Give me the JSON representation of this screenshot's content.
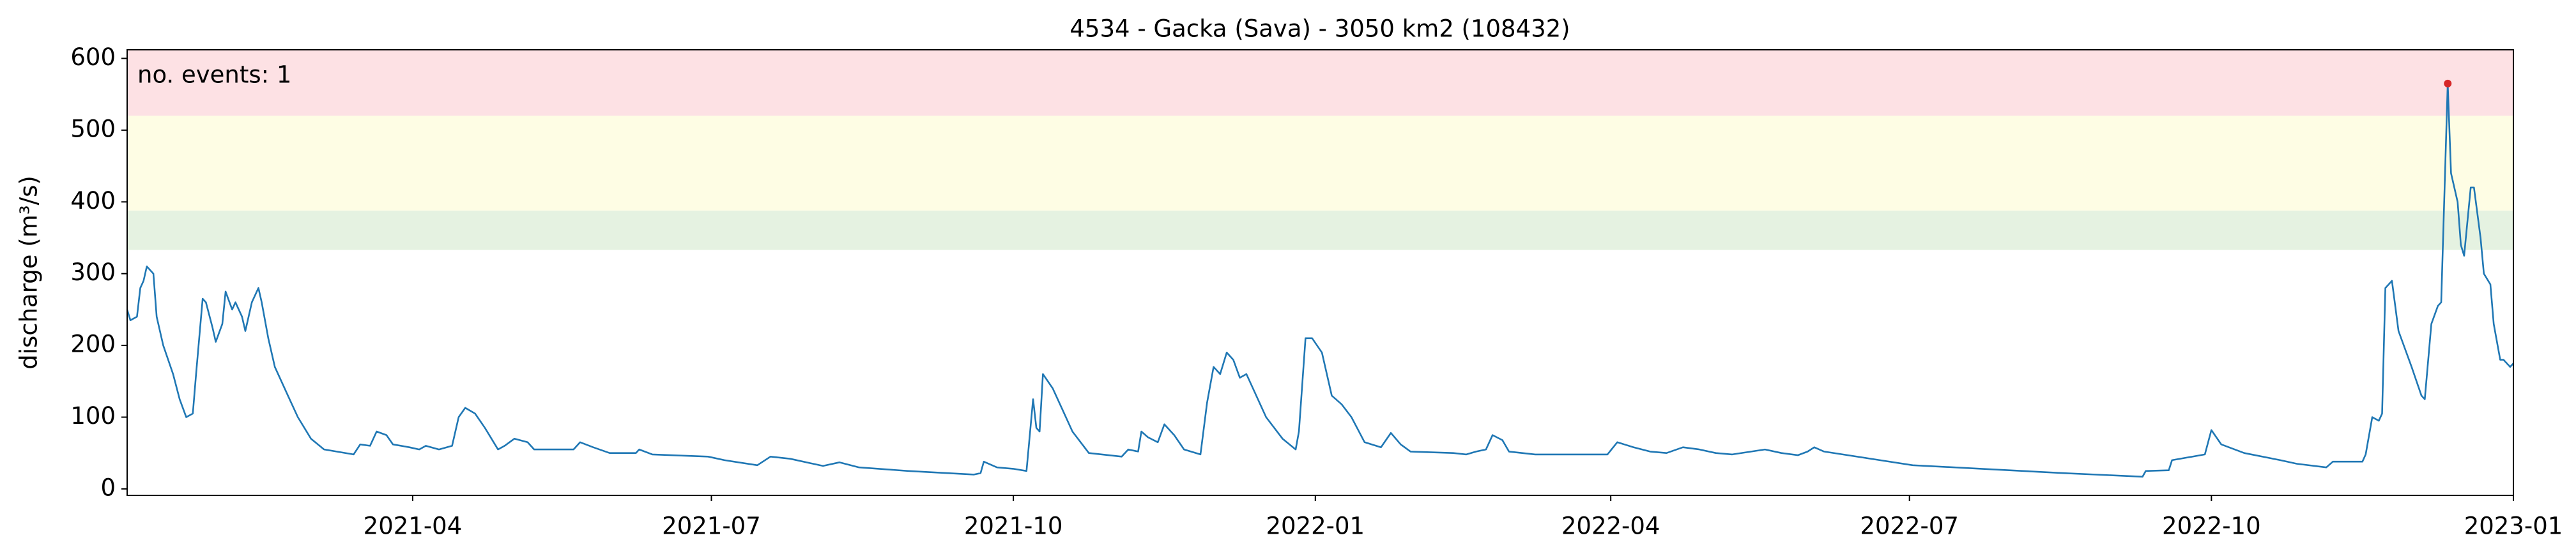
{
  "chart_data": {
    "type": "line",
    "title": "4534 - Gacka (Sava) - 3050 km2 (108432)",
    "y_label": "discharge (m³/s)",
    "annotation": "no. events: 1",
    "annotation_color": "#d62728",
    "xlim": [
      "2021-01-04",
      "2023-01-01"
    ],
    "xticks": [
      "2021-04",
      "2021-07",
      "2021-10",
      "2022-01",
      "2022-04",
      "2022-07",
      "2022-10",
      "2023-01"
    ],
    "ylim": [
      -9,
      612
    ],
    "yticks": [
      0,
      100,
      200,
      300,
      400,
      500,
      600
    ],
    "bands": [
      {
        "from": 333,
        "to": 388,
        "color": "#e5f2e1"
      },
      {
        "from": 388,
        "to": 520,
        "color": "#fefde4"
      },
      {
        "from": 520,
        "to": 612,
        "color": "#fde1e4"
      }
    ],
    "series": [
      {
        "color": "#1f77b4",
        "x": [
          "2021-01-04",
          "2021-01-05",
          "2021-01-07",
          "2021-01-08",
          "2021-01-09",
          "2021-01-10",
          "2021-01-12",
          "2021-01-13",
          "2021-01-15",
          "2021-01-18",
          "2021-01-20",
          "2021-01-22",
          "2021-01-24",
          "2021-01-25",
          "2021-01-27",
          "2021-01-28",
          "2021-01-30",
          "2021-01-31",
          "2021-02-02",
          "2021-02-03",
          "2021-02-05",
          "2021-02-06",
          "2021-02-08",
          "2021-02-09",
          "2021-02-11",
          "2021-02-13",
          "2021-02-14",
          "2021-02-16",
          "2021-02-18",
          "2021-02-22",
          "2021-02-25",
          "2021-03-01",
          "2021-03-05",
          "2021-03-14",
          "2021-03-16",
          "2021-03-19",
          "2021-03-21",
          "2021-03-24",
          "2021-03-26",
          "2021-03-31",
          "2021-04-03",
          "2021-04-05",
          "2021-04-09",
          "2021-04-13",
          "2021-04-15",
          "2021-04-17",
          "2021-04-20",
          "2021-04-23",
          "2021-04-27",
          "2021-04-29",
          "2021-05-02",
          "2021-05-06",
          "2021-05-08",
          "2021-05-16",
          "2021-05-20",
          "2021-05-22",
          "2021-05-26",
          "2021-05-31",
          "2021-06-08",
          "2021-06-09",
          "2021-06-13",
          "2021-06-30",
          "2021-07-05",
          "2021-07-15",
          "2021-07-19",
          "2021-07-25",
          "2021-08-04",
          "2021-08-09",
          "2021-08-15",
          "2021-08-30",
          "2021-09-19",
          "2021-09-21",
          "2021-09-22",
          "2021-09-26",
          "2021-10-01",
          "2021-10-05",
          "2021-10-07",
          "2021-10-08",
          "2021-10-09",
          "2021-10-10",
          "2021-10-13",
          "2021-10-16",
          "2021-10-19",
          "2021-10-24",
          "2021-11-03",
          "2021-11-05",
          "2021-11-08",
          "2021-11-09",
          "2021-11-11",
          "2021-11-14",
          "2021-11-16",
          "2021-11-19",
          "2021-11-22",
          "2021-11-27",
          "2021-11-29",
          "2021-12-01",
          "2021-12-03",
          "2021-12-05",
          "2021-12-07",
          "2021-12-09",
          "2021-12-11",
          "2021-12-13",
          "2021-12-17",
          "2021-12-22",
          "2021-12-26",
          "2021-12-27",
          "2021-12-29",
          "2021-12-31",
          "2022-01-03",
          "2022-01-06",
          "2022-01-09",
          "2022-01-12",
          "2022-01-16",
          "2022-01-21",
          "2022-01-24",
          "2022-01-27",
          "2022-01-30",
          "2022-02-12",
          "2022-02-16",
          "2022-02-19",
          "2022-02-22",
          "2022-02-24",
          "2022-02-27",
          "2022-03-01",
          "2022-03-09",
          "2022-03-31",
          "2022-04-03",
          "2022-04-08",
          "2022-04-13",
          "2022-04-18",
          "2022-04-23",
          "2022-04-28",
          "2022-05-03",
          "2022-05-08",
          "2022-05-18",
          "2022-05-23",
          "2022-05-28",
          "2022-05-31",
          "2022-06-02",
          "2022-06-05",
          "2022-06-22",
          "2022-07-02",
          "2022-07-23",
          "2022-08-17",
          "2022-09-10",
          "2022-09-11",
          "2022-09-18",
          "2022-09-19",
          "2022-09-29",
          "2022-10-01",
          "2022-10-04",
          "2022-10-11",
          "2022-10-22",
          "2022-10-27",
          "2022-11-05",
          "2022-11-07",
          "2022-11-16",
          "2022-11-17",
          "2022-11-19",
          "2022-11-21",
          "2022-11-22",
          "2022-11-23",
          "2022-11-25",
          "2022-11-27",
          "2022-12-01",
          "2022-12-04",
          "2022-12-05",
          "2022-12-07",
          "2022-12-09",
          "2022-12-10",
          "2022-12-12",
          "2022-12-13",
          "2022-12-15",
          "2022-12-16",
          "2022-12-17",
          "2022-12-19",
          "2022-12-20",
          "2022-12-22",
          "2022-12-23",
          "2022-12-25",
          "2022-12-26",
          "2022-12-28",
          "2022-12-29",
          "2022-12-31",
          "2023-01-01"
        ],
        "values": [
          250,
          235,
          240,
          280,
          290,
          310,
          300,
          240,
          200,
          160,
          125,
          100,
          105,
          160,
          265,
          260,
          225,
          205,
          230,
          275,
          250,
          260,
          240,
          220,
          260,
          280,
          260,
          210,
          170,
          130,
          100,
          70,
          55,
          48,
          62,
          60,
          80,
          75,
          62,
          58,
          55,
          60,
          55,
          60,
          100,
          113,
          105,
          85,
          55,
          60,
          70,
          65,
          55,
          55,
          55,
          65,
          58,
          50,
          50,
          55,
          48,
          45,
          40,
          33,
          45,
          42,
          32,
          37,
          30,
          25,
          20,
          22,
          38,
          30,
          28,
          25,
          125,
          85,
          80,
          160,
          140,
          110,
          80,
          50,
          45,
          55,
          52,
          80,
          72,
          65,
          90,
          75,
          55,
          48,
          120,
          170,
          160,
          190,
          180,
          155,
          160,
          140,
          100,
          70,
          55,
          80,
          210,
          210,
          190,
          130,
          118,
          100,
          65,
          58,
          78,
          62,
          52,
          50,
          48,
          52,
          55,
          75,
          68,
          52,
          48,
          48,
          65,
          58,
          52,
          50,
          58,
          55,
          50,
          48,
          55,
          50,
          47,
          52,
          58,
          52,
          40,
          33,
          28,
          22,
          17,
          25,
          26,
          40,
          48,
          82,
          62,
          50,
          40,
          35,
          30,
          38,
          38,
          48,
          100,
          95,
          105,
          280,
          290,
          220,
          170,
          130,
          125,
          230,
          255,
          260,
          565,
          440,
          400,
          340,
          325,
          420,
          420,
          350,
          300,
          285,
          230,
          180,
          180,
          170,
          175
        ]
      }
    ],
    "events": {
      "color": "#d62728",
      "x": [
        "2022-12-12"
      ],
      "values": [
        565
      ]
    }
  }
}
